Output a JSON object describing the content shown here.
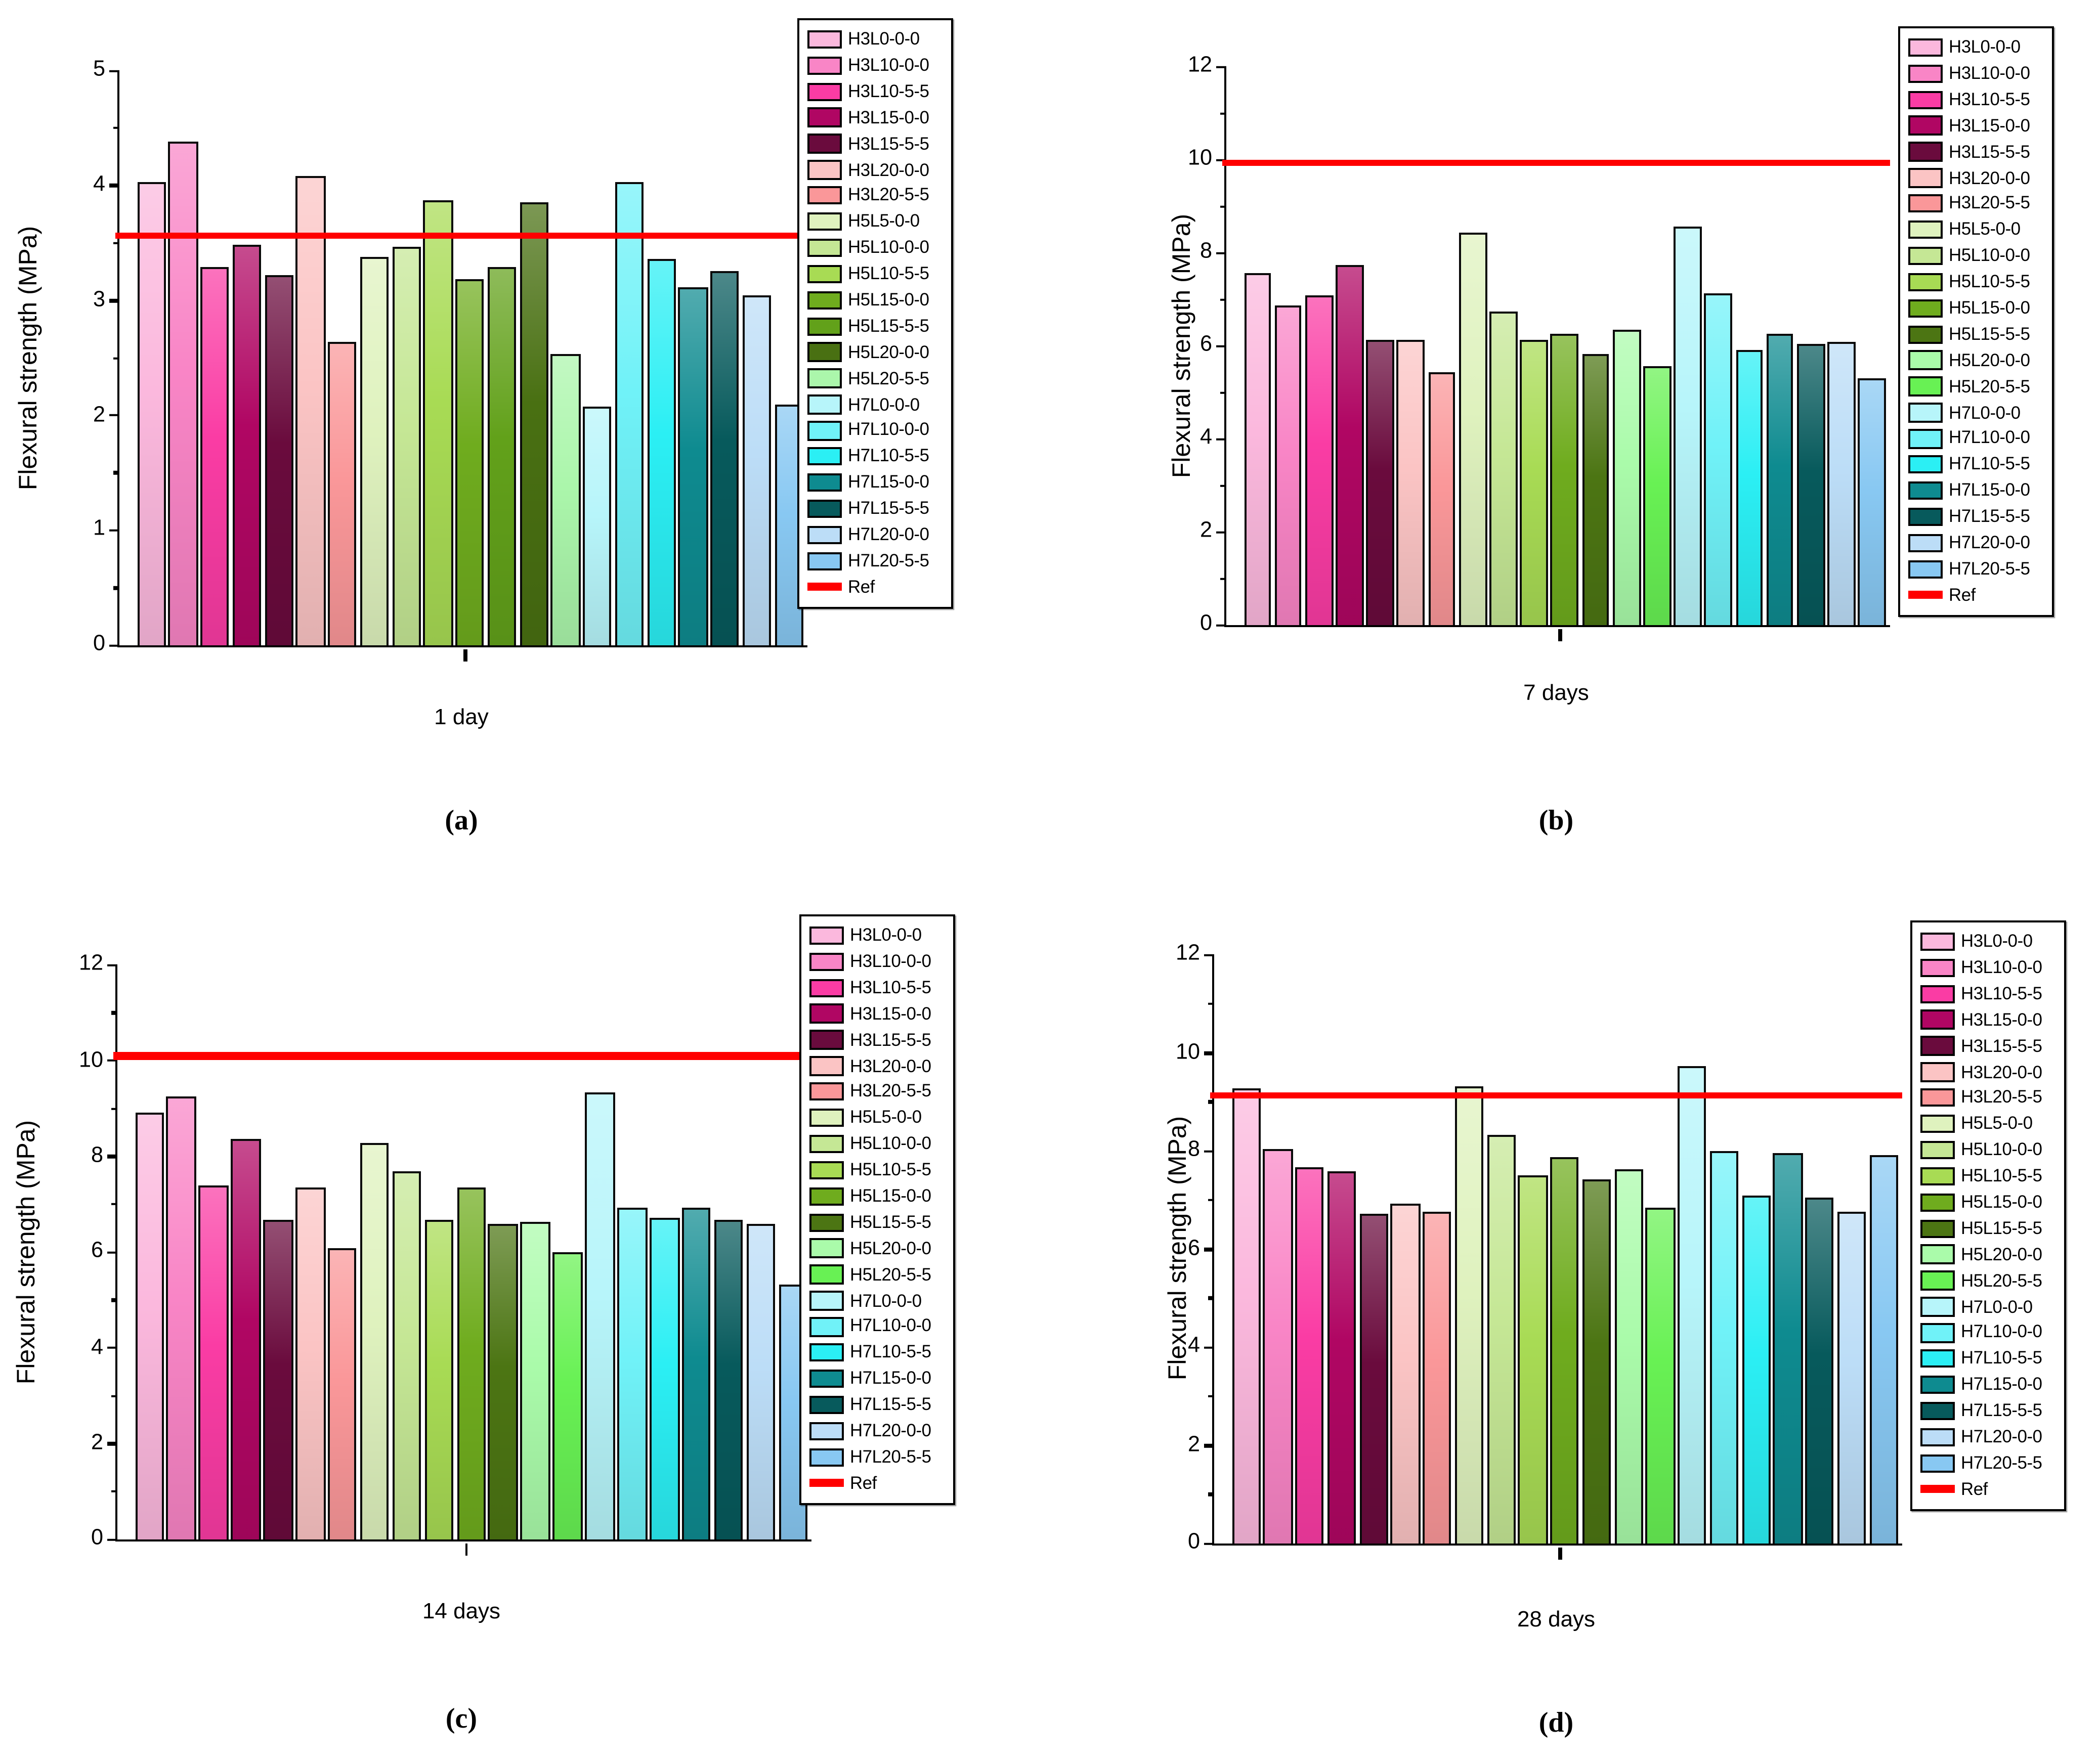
{
  "legend": {
    "ref_label": "Ref"
  },
  "style": {
    "background": "#FFFFFF",
    "axis_color": "#000000",
    "ref_color": "#FF0000",
    "palette": [
      "#FBB8DD",
      "#F985C6",
      "#FA3CA4",
      "#B00663",
      "#6A0B3D",
      "#FBC4C4",
      "#FA9799",
      "#DFF2BE",
      "#C5E795",
      "#A8DB54",
      "#6FAC1E",
      "#62A11A",
      "#497012",
      "#ABF6AB",
      "#B7F5FA",
      "#70F2F8",
      "#2BEFF4",
      "#0E8B90",
      "#075A5C",
      "#BCDDF7",
      "#88C8F2"
    ],
    "alt_overrides": {
      "11": "#4C7513",
      "12": "#AAFBAA",
      "13": "#68F154"
    }
  },
  "chart_data": [
    {
      "type": "bar",
      "id": "a",
      "panel_label": "(a)",
      "xlabel": "1 day",
      "ylabel": "Flexural strength (MPa)",
      "ylim": [
        0,
        5
      ],
      "yticks": [
        0,
        1,
        2,
        3,
        4,
        5
      ],
      "minor_yticks": [
        0.5,
        1.5,
        2.5,
        3.5,
        4.5
      ],
      "grid": false,
      "legend_position": "right",
      "alt_palette": false,
      "categories": [
        "H3L0-0-0",
        "H3L10-0-0",
        "H3L10-5-5",
        "H3L15-0-0",
        "H3L15-5-5",
        "H3L20-0-0",
        "H3L20-5-5",
        "H5L5-0-0",
        "H5L10-0-0",
        "H5L10-5-5",
        "H5L15-0-0",
        "H5L15-5-5",
        "H5L20-0-0",
        "H5L20-5-5",
        "H7L0-0-0",
        "H7L10-0-0",
        "H7L10-5-5",
        "H7L15-0-0",
        "H7L15-5-5",
        "H7L20-0-0",
        "H7L20-5-5"
      ],
      "values": [
        4.04,
        4.38,
        3.29,
        3.48,
        3.22,
        4.08,
        2.64,
        3.38,
        3.47,
        3.88,
        3.19,
        3.3,
        3.86,
        2.54,
        2.07,
        4.03,
        3.36,
        3.11,
        3.26,
        3.04,
        2.09
      ],
      "ref_value": 3.57
    },
    {
      "type": "bar",
      "id": "b",
      "panel_label": "(b)",
      "xlabel": "7 days",
      "ylabel": "Flexural strength (MPa)",
      "ylim": [
        0,
        12
      ],
      "yticks": [
        0,
        2,
        4,
        6,
        8,
        10,
        12
      ],
      "minor_yticks": [
        1,
        3,
        5,
        7,
        9,
        11
      ],
      "grid": false,
      "legend_position": "right",
      "alt_palette": true,
      "categories": [
        "H3L0-0-0",
        "H3L10-0-0",
        "H3L10-5-5",
        "H3L15-0-0",
        "H3L15-5-5",
        "H3L20-0-0",
        "H3L20-5-5",
        "H5L5-0-0",
        "H5L10-0-0",
        "H5L10-5-5",
        "H5L15-0-0",
        "H5L15-5-5",
        "H5L20-0-0",
        "H5L20-5-5",
        "H7L0-0-0",
        "H7L10-0-0",
        "H7L10-5-5",
        "H7L15-0-0",
        "H7L15-5-5",
        "H7L20-0-0",
        "H7L20-5-5"
      ],
      "values": [
        7.55,
        6.89,
        7.08,
        7.75,
        6.15,
        6.12,
        5.45,
        8.45,
        6.74,
        6.15,
        6.24,
        5.83,
        6.35,
        5.56,
        8.55,
        7.14,
        5.9,
        6.28,
        6.03,
        6.1,
        5.29
      ],
      "ref_value": 9.95
    },
    {
      "type": "bar",
      "id": "c",
      "panel_label": "(c)",
      "xlabel": "14 days",
      "ylabel": "Flexural strength (MPa)",
      "ylim": [
        0,
        12
      ],
      "yticks": [
        0,
        2,
        4,
        6,
        8,
        10,
        12
      ],
      "minor_yticks": [
        1,
        3,
        5,
        7,
        9,
        11
      ],
      "grid": false,
      "legend_position": "right",
      "alt_palette": true,
      "categories": [
        "H3L0-0-0",
        "H3L10-0-0",
        "H3L10-5-5",
        "H3L15-0-0",
        "H3L15-5-5",
        "H3L20-0-0",
        "H3L20-5-5",
        "H5L5-0-0",
        "H5L10-0-0",
        "H5L10-5-5",
        "H5L15-0-0",
        "H5L15-5-5",
        "H5L20-0-0",
        "H5L20-5-5",
        "H7L0-0-0",
        "H7L10-0-0",
        "H7L10-5-5",
        "H7L15-0-0",
        "H7L15-5-5",
        "H7L20-0-0",
        "H7L20-5-5"
      ],
      "values": [
        8.93,
        9.27,
        7.4,
        8.36,
        6.67,
        7.35,
        6.09,
        8.3,
        7.7,
        6.68,
        7.36,
        6.59,
        6.64,
        6.0,
        9.35,
        6.91,
        6.74,
        6.95,
        6.68,
        6.61,
        5.34
      ],
      "ref_value": 10.1
    },
    {
      "type": "bar",
      "id": "d",
      "panel_label": "(d)",
      "xlabel": "28 days",
      "ylabel": "Flexural strength (MPa)",
      "ylim": [
        0,
        12
      ],
      "yticks": [
        0,
        2,
        4,
        6,
        8,
        10,
        12
      ],
      "minor_yticks": [
        1,
        3,
        5,
        7,
        9,
        11
      ],
      "grid": false,
      "legend_position": "right",
      "alt_palette": true,
      "categories": [
        "H3L0-0-0",
        "H3L10-0-0",
        "H3L10-5-5",
        "H3L15-0-0",
        "H3L15-5-5",
        "H3L20-0-0",
        "H3L20-5-5",
        "H5L5-0-0",
        "H5L10-0-0",
        "H5L10-5-5",
        "H5L15-0-0",
        "H5L15-5-5",
        "H5L20-0-0",
        "H5L20-5-5",
        "H7L0-0-0",
        "H7L10-0-0",
        "H7L10-5-5",
        "H7L15-0-0",
        "H7L15-5-5",
        "H7L20-0-0",
        "H7L20-5-5"
      ],
      "values": [
        9.29,
        8.06,
        7.66,
        7.58,
        6.73,
        6.91,
        6.77,
        9.33,
        8.35,
        7.51,
        7.89,
        7.42,
        7.64,
        6.84,
        9.75,
        8.02,
        7.08,
        7.97,
        7.05,
        6.75,
        7.92
      ],
      "ref_value": 9.12
    }
  ]
}
